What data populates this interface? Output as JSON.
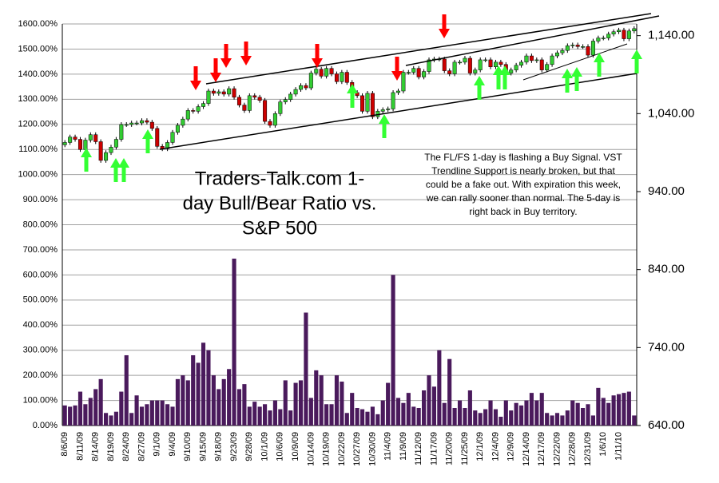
{
  "chart_data": {
    "type": "bar",
    "title_lines": [
      "Traders-Talk.com 1-",
      "day Bull/Bear Ratio vs.",
      "S&P 500"
    ],
    "annotation_lines": [
      "The FL/FS 1-day is flashing a Buy Signal. VST",
      "Trendline Support is nearly broken, but that",
      "could be a fake out. With expiration this week,",
      "we can rally sooner than normal. The 5-day is",
      "right back in Buy territory."
    ],
    "categories": [
      "8/6/09",
      null,
      null,
      "8/11/09",
      null,
      null,
      "8/14/09",
      null,
      null,
      "8/19/09",
      null,
      null,
      "8/24/09",
      null,
      null,
      "8/27/09",
      null,
      null,
      "9/1/09",
      null,
      null,
      "9/4/09",
      null,
      null,
      "9/10/09",
      null,
      null,
      "9/15/09",
      null,
      null,
      "9/18/09",
      null,
      null,
      "9/23/09",
      null,
      null,
      "9/28/09",
      null,
      null,
      "10/1/09",
      null,
      null,
      "10/6/09",
      null,
      null,
      "10/9/09",
      null,
      null,
      "10/14/09",
      null,
      null,
      "10/19/09",
      null,
      null,
      "10/22/09",
      null,
      null,
      "10/27/09",
      null,
      null,
      "10/30/09",
      null,
      null,
      "11/4/09",
      null,
      null,
      "11/9/09",
      null,
      null,
      "11/12/09",
      null,
      null,
      "11/17/09",
      null,
      null,
      "11/20/09",
      null,
      null,
      "11/25/09",
      null,
      null,
      "12/1/09",
      null,
      null,
      "12/4/09",
      null,
      null,
      "12/9/09",
      null,
      null,
      "12/14/09",
      null,
      null,
      "12/17/09",
      null,
      null,
      "12/22/09",
      null,
      null,
      "12/28/09",
      null,
      null,
      "12/31/09",
      null,
      null,
      "1/6/10",
      null,
      null,
      "1/11/10",
      null,
      null,
      null
    ],
    "values": [
      80,
      75,
      80,
      135,
      85,
      110,
      145,
      185,
      50,
      40,
      55,
      135,
      280,
      50,
      120,
      75,
      85,
      100,
      100,
      100,
      85,
      75,
      185,
      200,
      180,
      280,
      250,
      330,
      300,
      200,
      145,
      185,
      225,
      665,
      145,
      165,
      75,
      95,
      75,
      85,
      60,
      100,
      65,
      180,
      60,
      170,
      180,
      450,
      110,
      220,
      200,
      85,
      85,
      200,
      175,
      50,
      130,
      70,
      65,
      55,
      75,
      45,
      100,
      170,
      600,
      110,
      90,
      130,
      75,
      70,
      140,
      200,
      155,
      300,
      90,
      265,
      70,
      100,
      70,
      140,
      60,
      50,
      65,
      100,
      65,
      35,
      100,
      60,
      90,
      80,
      100,
      130,
      100,
      130,
      50,
      40,
      50,
      40,
      60,
      100,
      90,
      70,
      85,
      40,
      150,
      110,
      90,
      120,
      125,
      130,
      135,
      40
    ],
    "color": "#4a1a5c",
    "ylim": [
      0,
      1600
    ],
    "yticks": [
      {
        "value": 0,
        "label": "0.00%"
      },
      {
        "value": 100,
        "label": "100.00%"
      },
      {
        "value": 200,
        "label": "200.00%"
      },
      {
        "value": 300,
        "label": "300.00%"
      },
      {
        "value": 400,
        "label": "400.00%"
      },
      {
        "value": 500,
        "label": "500.00%"
      },
      {
        "value": 600,
        "label": "600.00%"
      },
      {
        "value": 700,
        "label": "700.00%"
      },
      {
        "value": 800,
        "label": "800.00%"
      },
      {
        "value": 900,
        "label": "900.00%"
      },
      {
        "value": 1000,
        "label": "1000.00%"
      },
      {
        "value": 1100,
        "label": "1100.00%"
      },
      {
        "value": 1200,
        "label": "1200.00%"
      },
      {
        "value": 1300,
        "label": "1300.00%"
      },
      {
        "value": 1400,
        "label": "1400.00%"
      },
      {
        "value": 1500,
        "label": "1500.00%"
      },
      {
        "value": 1600,
        "label": "1600.00%"
      }
    ],
    "grid": true,
    "y2lim": [
      640,
      1155
    ],
    "y2ticks": [
      {
        "value": 640,
        "label": "640.00"
      },
      {
        "value": 740,
        "label": "740.00"
      },
      {
        "value": 840,
        "label": "840.00"
      },
      {
        "value": 940,
        "label": "940.00"
      },
      {
        "value": 1040,
        "label": "1,040.00"
      },
      {
        "value": 1140,
        "label": "1,140.00"
      }
    ],
    "candles": {
      "up_color": "#33cc33",
      "down_color": "#cc0000",
      "open": [
        1000,
        1003,
        1010,
        1007,
        994,
        1006,
        1013,
        1004,
        980,
        990,
        997,
        1007,
        1026,
        1026,
        1028,
        1028,
        1031,
        1029,
        1021,
        998,
        995,
        1003,
        1016,
        1025,
        1033,
        1044,
        1043,
        1049,
        1053,
        1069,
        1066,
        1068,
        1065,
        1072,
        1061,
        1051,
        1044,
        1063,
        1061,
        1057,
        1030,
        1025,
        1040,
        1055,
        1058,
        1065,
        1071,
        1076,
        1073,
        1092,
        1097,
        1088,
        1098,
        1091,
        1081,
        1093,
        1080,
        1067,
        1063,
        1043,
        1066,
        1036,
        1043,
        1045,
        1046,
        1067,
        1069,
        1093,
        1093,
        1098,
        1087,
        1094,
        1109,
        1110,
        1110,
        1095,
        1091,
        1106,
        1106,
        1111,
        1092,
        1096,
        1109,
        1109,
        1100,
        1106,
        1103,
        1092,
        1096,
        1102,
        1106,
        1114,
        1108,
        1109,
        1096,
        1103,
        1114,
        1118,
        1121,
        1127,
        1128,
        1126,
        1126,
        1115,
        1133,
        1137,
        1137,
        1142,
        1145,
        1147,
        1136,
        1146
      ],
      "high": [
        1006,
        1013,
        1013,
        1010,
        1009,
        1016,
        1016,
        1007,
        993,
        1000,
        1010,
        1029,
        1029,
        1031,
        1031,
        1034,
        1034,
        1032,
        1024,
        1001,
        1006,
        1019,
        1028,
        1036,
        1047,
        1047,
        1052,
        1056,
        1072,
        1072,
        1071,
        1071,
        1075,
        1075,
        1064,
        1054,
        1066,
        1066,
        1064,
        1060,
        1033,
        1043,
        1058,
        1061,
        1068,
        1074,
        1079,
        1079,
        1095,
        1100,
        1100,
        1101,
        1101,
        1094,
        1096,
        1096,
        1083,
        1070,
        1066,
        1069,
        1069,
        1046,
        1048,
        1049,
        1070,
        1072,
        1096,
        1096,
        1101,
        1101,
        1097,
        1112,
        1113,
        1113,
        1113,
        1098,
        1109,
        1109,
        1114,
        1114,
        1099,
        1112,
        1112,
        1112,
        1109,
        1109,
        1106,
        1099,
        1105,
        1109,
        1117,
        1117,
        1112,
        1112,
        1106,
        1117,
        1121,
        1124,
        1130,
        1131,
        1131,
        1129,
        1129,
        1136,
        1140,
        1140,
        1145,
        1148,
        1150,
        1150,
        1149,
        1152
      ],
      "low": [
        997,
        1000,
        1004,
        991,
        991,
        1003,
        1001,
        977,
        977,
        987,
        994,
        1004,
        1023,
        1023,
        1025,
        1025,
        1026,
        1018,
        995,
        992,
        992,
        1000,
        1013,
        1022,
        1030,
        1040,
        1040,
        1046,
        1050,
        1063,
        1063,
        1062,
        1062,
        1058,
        1048,
        1041,
        1041,
        1058,
        1054,
        1027,
        1022,
        1022,
        1037,
        1052,
        1055,
        1062,
        1068,
        1070,
        1070,
        1089,
        1085,
        1085,
        1088,
        1078,
        1078,
        1077,
        1064,
        1060,
        1040,
        1040,
        1033,
        1033,
        1040,
        1042,
        1043,
        1064,
        1066,
        1090,
        1090,
        1084,
        1084,
        1091,
        1106,
        1107,
        1092,
        1088,
        1088,
        1103,
        1103,
        1089,
        1089,
        1093,
        1106,
        1097,
        1097,
        1100,
        1089,
        1089,
        1093,
        1099,
        1103,
        1105,
        1105,
        1093,
        1093,
        1100,
        1111,
        1115,
        1118,
        1124,
        1123,
        1123,
        1112,
        1112,
        1130,
        1134,
        1134,
        1139,
        1142,
        1133,
        1133,
        1143
      ],
      "close": [
        1003,
        1010,
        1007,
        994,
        1006,
        1013,
        1004,
        980,
        990,
        997,
        1007,
        1026,
        1026,
        1028,
        1028,
        1031,
        1029,
        1021,
        998,
        995,
        1003,
        1016,
        1025,
        1033,
        1044,
        1043,
        1049,
        1053,
        1069,
        1066,
        1068,
        1065,
        1072,
        1061,
        1051,
        1044,
        1063,
        1061,
        1057,
        1030,
        1025,
        1040,
        1055,
        1058,
        1065,
        1071,
        1076,
        1073,
        1092,
        1097,
        1088,
        1098,
        1091,
        1081,
        1093,
        1080,
        1067,
        1063,
        1043,
        1066,
        1036,
        1043,
        1045,
        1046,
        1067,
        1069,
        1093,
        1093,
        1098,
        1087,
        1094,
        1109,
        1110,
        1110,
        1095,
        1091,
        1106,
        1106,
        1111,
        1092,
        1096,
        1109,
        1109,
        1100,
        1106,
        1103,
        1092,
        1096,
        1102,
        1106,
        1114,
        1108,
        1109,
        1096,
        1103,
        1114,
        1118,
        1121,
        1127,
        1128,
        1126,
        1126,
        1115,
        1133,
        1137,
        1137,
        1142,
        1145,
        1147,
        1136,
        1146,
        1149
      ]
    }
  }
}
